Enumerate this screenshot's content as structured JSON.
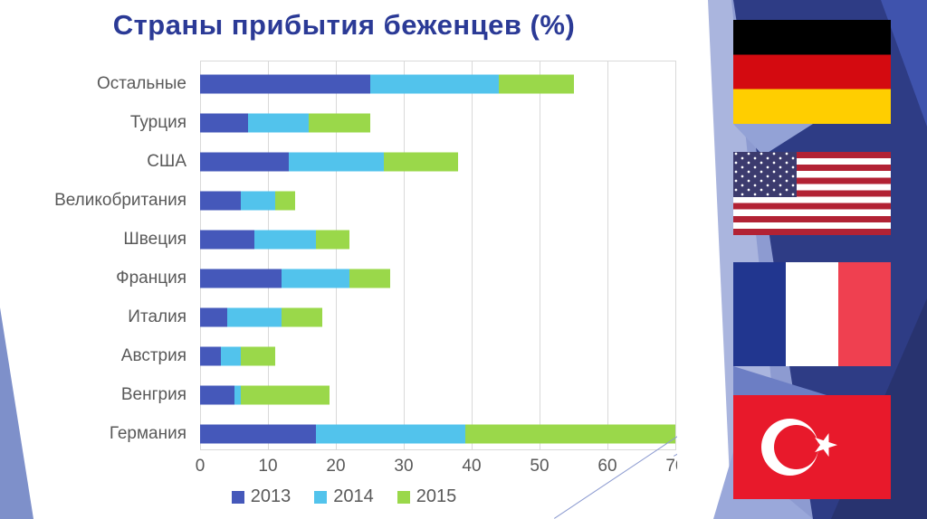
{
  "title": "Страны прибытия беженцев (%)",
  "chart_data": {
    "type": "bar",
    "orientation": "horizontal",
    "stacked": true,
    "title": "Страны прибытия беженцев (%)",
    "categories": [
      "Остальные",
      "Турция",
      "США",
      "Великобритания",
      "Швеция",
      "Франция",
      "Италия",
      "Австрия",
      "Венгрия",
      "Германия"
    ],
    "series": [
      {
        "name": "2013",
        "color": "#4558ba",
        "values": [
          25,
          7,
          13,
          6,
          8,
          12,
          4,
          3,
          5,
          17
        ]
      },
      {
        "name": "2014",
        "color": "#52c3ec",
        "values": [
          19,
          9,
          14,
          5,
          9,
          10,
          8,
          3,
          1,
          22
        ]
      },
      {
        "name": "2015",
        "color": "#9ad84a",
        "values": [
          11,
          9,
          11,
          3,
          5,
          6,
          6,
          5,
          13,
          31
        ]
      }
    ],
    "x_ticks": [
      "0",
      "10",
      "20",
      "30",
      "40",
      "50",
      "60",
      "70"
    ],
    "xlim": [
      0,
      70
    ],
    "xlabel": "",
    "ylabel": "",
    "grid": true,
    "legend_position": "bottom"
  },
  "colors": {
    "title_text": "#2b3a96",
    "axis_text": "#595959",
    "gridline": "#d9d9d9",
    "left_wedge": "#7e90ca",
    "diag_line": "#8b9ad0",
    "panel_navy": "#2e3c85",
    "panel_light": "#aab5de",
    "panel_medium": "#8d9bd1",
    "panel_bright": "#3f53ad",
    "panel_dark": "#28336f"
  },
  "flags": {
    "germany_label": "germany-flag",
    "usa_label": "usa-flag",
    "france_label": "france-flag",
    "turkey_label": "turkey-flag"
  }
}
